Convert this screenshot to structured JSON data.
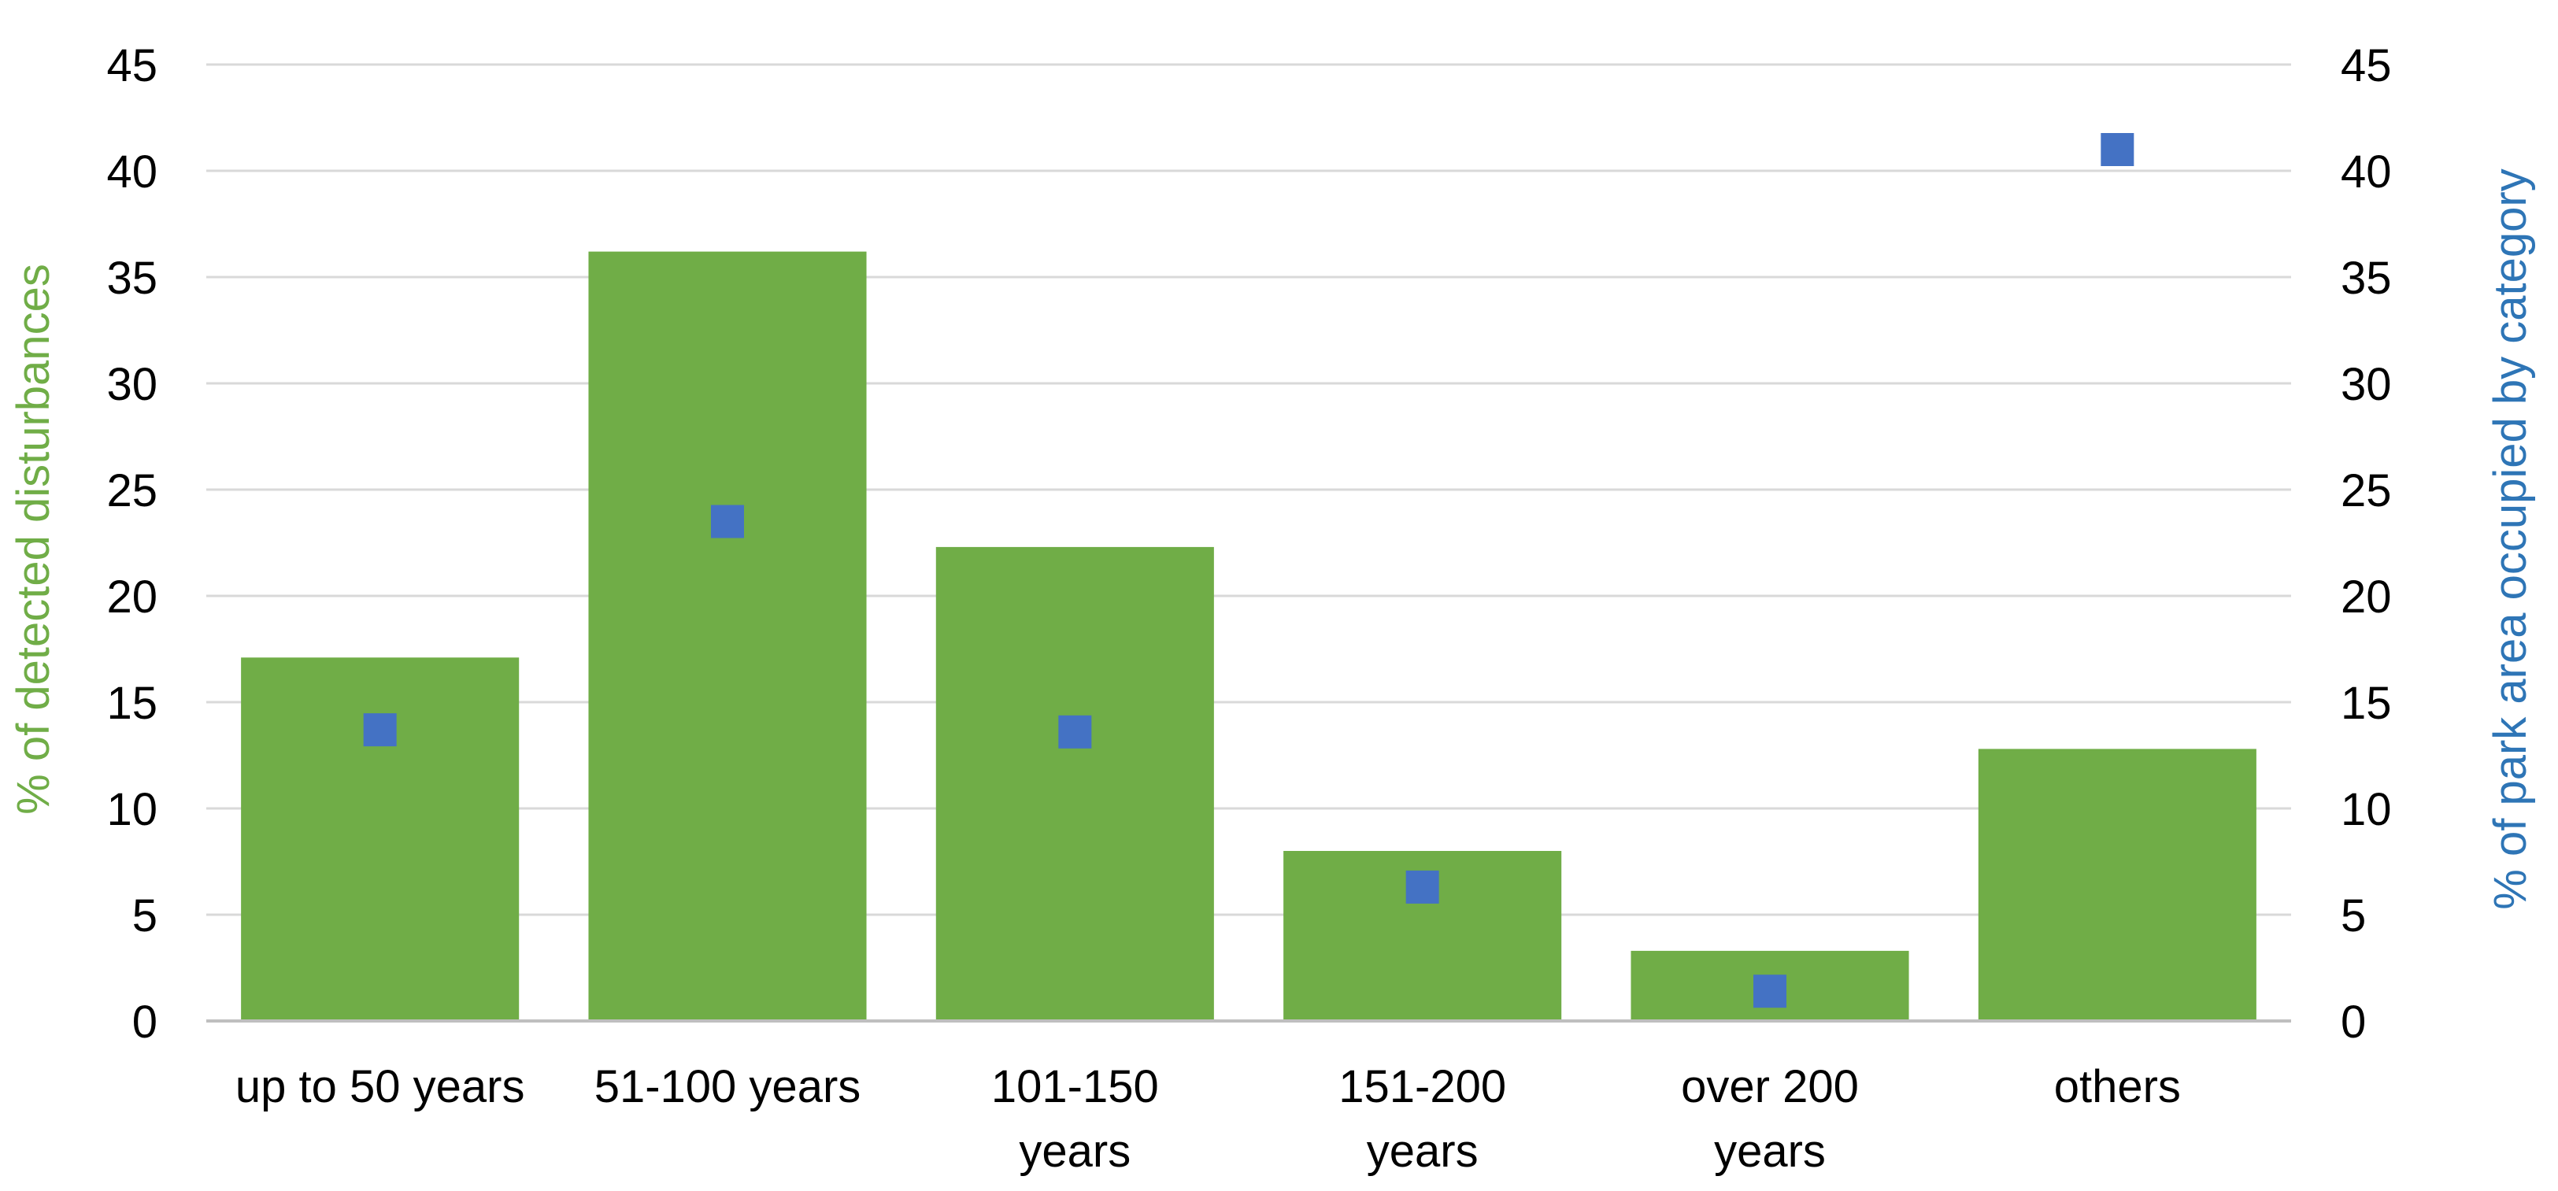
{
  "chart_data": {
    "type": "bar",
    "categories": [
      [
        "up to 50 years"
      ],
      [
        "51-100 years"
      ],
      [
        "101-150",
        "years"
      ],
      [
        "151-200",
        "years"
      ],
      [
        "over 200",
        "years"
      ],
      [
        "others"
      ]
    ],
    "ylabel": "% of detected disturbances",
    "ylabel_right": "% of park area occupied by category",
    "ylim": [
      0,
      45
    ],
    "y2lim": [
      0,
      45
    ],
    "yticks": [
      0,
      5,
      10,
      15,
      20,
      25,
      30,
      35,
      40,
      45
    ],
    "grid": true,
    "series": [
      {
        "type": "bar",
        "axis": "left",
        "color": "#70ad47",
        "values": [
          17.1,
          36.2,
          22.3,
          8.0,
          3.3,
          12.8
        ]
      },
      {
        "type": "scatter",
        "axis": "right",
        "marker": "square",
        "color": "#4472c4",
        "values": [
          13.7,
          23.5,
          13.6,
          6.3,
          1.4,
          41.0
        ]
      }
    ],
    "colors": {
      "left_axis_label": "#70ad47",
      "right_axis_label": "#2e75b6",
      "gridline": "#d9d9d9",
      "axis_line": "#bfbfbf"
    }
  }
}
